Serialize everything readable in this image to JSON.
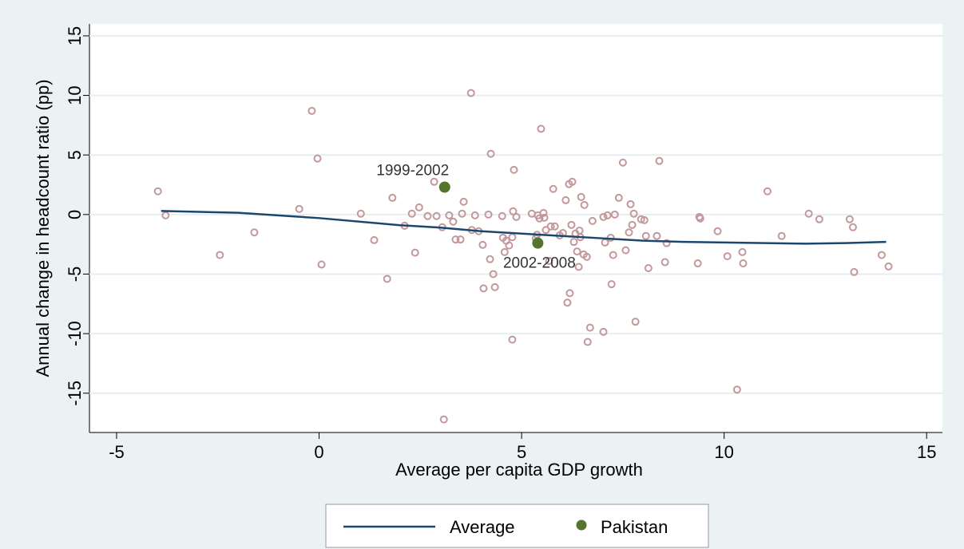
{
  "chart_data": {
    "type": "scatter",
    "x_label": "Average per capita GDP growth",
    "y_label": "Annual change in headcount ratio (pp)",
    "xlim": [
      -5.67,
      15.39
    ],
    "ylim": [
      -18.3,
      16.0
    ],
    "xticks": [
      -5,
      0,
      5,
      10,
      15
    ],
    "yticks": [
      -15,
      -10,
      -5,
      0,
      5,
      10,
      15
    ],
    "grid": true,
    "series": [
      {
        "color": "#c4989a",
        "style": "hollow-marker",
        "x": [
          -3.98,
          -3.79,
          -2.45,
          -1.6,
          -0.49,
          -0.18,
          -0.04,
          0.06,
          1.03,
          1.36,
          1.68,
          1.81,
          2.11,
          2.29,
          2.37,
          2.47,
          2.68,
          2.84,
          2.9,
          3.04,
          3.08,
          3.21,
          3.31,
          3.37,
          3.49,
          3.53,
          3.57,
          3.75,
          3.77,
          3.85,
          3.94,
          4.04,
          4.06,
          4.18,
          4.22,
          4.24,
          4.3,
          4.34,
          4.52,
          4.54,
          4.58,
          4.62,
          4.69,
          4.77,
          4.77,
          4.79,
          4.81,
          4.87,
          5.25,
          5.35,
          5.38,
          5.4,
          5.44,
          5.48,
          5.54,
          5.56,
          5.6,
          5.68,
          5.72,
          5.78,
          5.82,
          5.94,
          6.02,
          6.09,
          6.13,
          6.17,
          6.19,
          6.23,
          6.25,
          6.29,
          6.33,
          6.37,
          6.41,
          6.43,
          6.45,
          6.47,
          6.53,
          6.55,
          6.61,
          6.63,
          6.69,
          6.75,
          7.02,
          7.02,
          7.06,
          7.12,
          7.2,
          7.22,
          7.26,
          7.3,
          7.4,
          7.5,
          7.57,
          7.65,
          7.69,
          7.73,
          7.77,
          7.81,
          7.95,
          8.03,
          8.07,
          8.13,
          8.34,
          8.4,
          8.54,
          8.58,
          9.35,
          9.41,
          9.39,
          9.84,
          10.08,
          10.32,
          10.45,
          10.47,
          11.07,
          11.42,
          12.09,
          12.35,
          13.1,
          13.18,
          13.21,
          13.89,
          14.06
        ],
        "values": [
          1.95,
          -0.07,
          -3.4,
          -1.5,
          0.47,
          8.7,
          4.7,
          -4.2,
          0.07,
          -2.15,
          -5.4,
          1.4,
          -0.94,
          0.07,
          -3.2,
          0.6,
          -0.13,
          2.75,
          -0.13,
          -1.07,
          -17.2,
          -0.07,
          -0.6,
          -2.1,
          -2.1,
          0.07,
          1.07,
          10.2,
          -1.3,
          -0.07,
          -1.4,
          -2.55,
          -6.2,
          0,
          -3.75,
          5.1,
          -5.0,
          -6.1,
          -0.13,
          -1.95,
          -3.15,
          -2.2,
          -2.6,
          -1.9,
          -10.5,
          0.27,
          3.75,
          -0.2,
          0.07,
          -2.0,
          -1.7,
          -0.07,
          -0.33,
          7.2,
          0.13,
          -0.27,
          -1.3,
          -3.9,
          -1.0,
          2.15,
          -1.0,
          -1.75,
          -1.55,
          1.2,
          -7.4,
          2.55,
          -6.6,
          -0.87,
          2.75,
          -2.3,
          -1.6,
          -3.1,
          -4.4,
          -1.35,
          -1.9,
          1.47,
          -3.35,
          0.8,
          -3.55,
          -10.7,
          -9.5,
          -0.54,
          -0.2,
          -9.85,
          -2.35,
          -0.07,
          -1.95,
          -5.85,
          -3.4,
          0,
          1.4,
          4.36,
          -3.0,
          -1.5,
          0.87,
          -0.87,
          0.07,
          -9.0,
          -0.4,
          -0.47,
          -1.8,
          -4.5,
          -1.8,
          4.5,
          -4.0,
          -2.4,
          -4.1,
          -0.33,
          -0.2,
          -1.4,
          -3.5,
          -14.7,
          -3.15,
          -4.1,
          1.95,
          -1.8,
          0.07,
          -0.4,
          -0.4,
          -1.07,
          -4.83,
          -3.4,
          -4.36
        ]
      },
      {
        "name": "Average",
        "color": "#1a476f",
        "style": "line",
        "x": [
          -3.9,
          -2,
          0,
          2,
          3,
          4,
          5,
          6,
          7,
          8,
          9,
          10,
          11,
          12,
          13,
          14
        ],
        "values": [
          0.3,
          0.15,
          -0.3,
          -0.9,
          -1.1,
          -1.4,
          -1.6,
          -1.8,
          -2.0,
          -2.2,
          -2.3,
          -2.35,
          -2.4,
          -2.45,
          -2.4,
          -2.3
        ]
      },
      {
        "name": "Pakistan",
        "color": "#55752f",
        "style": "marker",
        "x": [
          3.1,
          5.4
        ],
        "values": [
          2.3,
          -2.4
        ],
        "point_labels": [
          "1999-2002",
          "2002-2008"
        ]
      }
    ]
  }
}
